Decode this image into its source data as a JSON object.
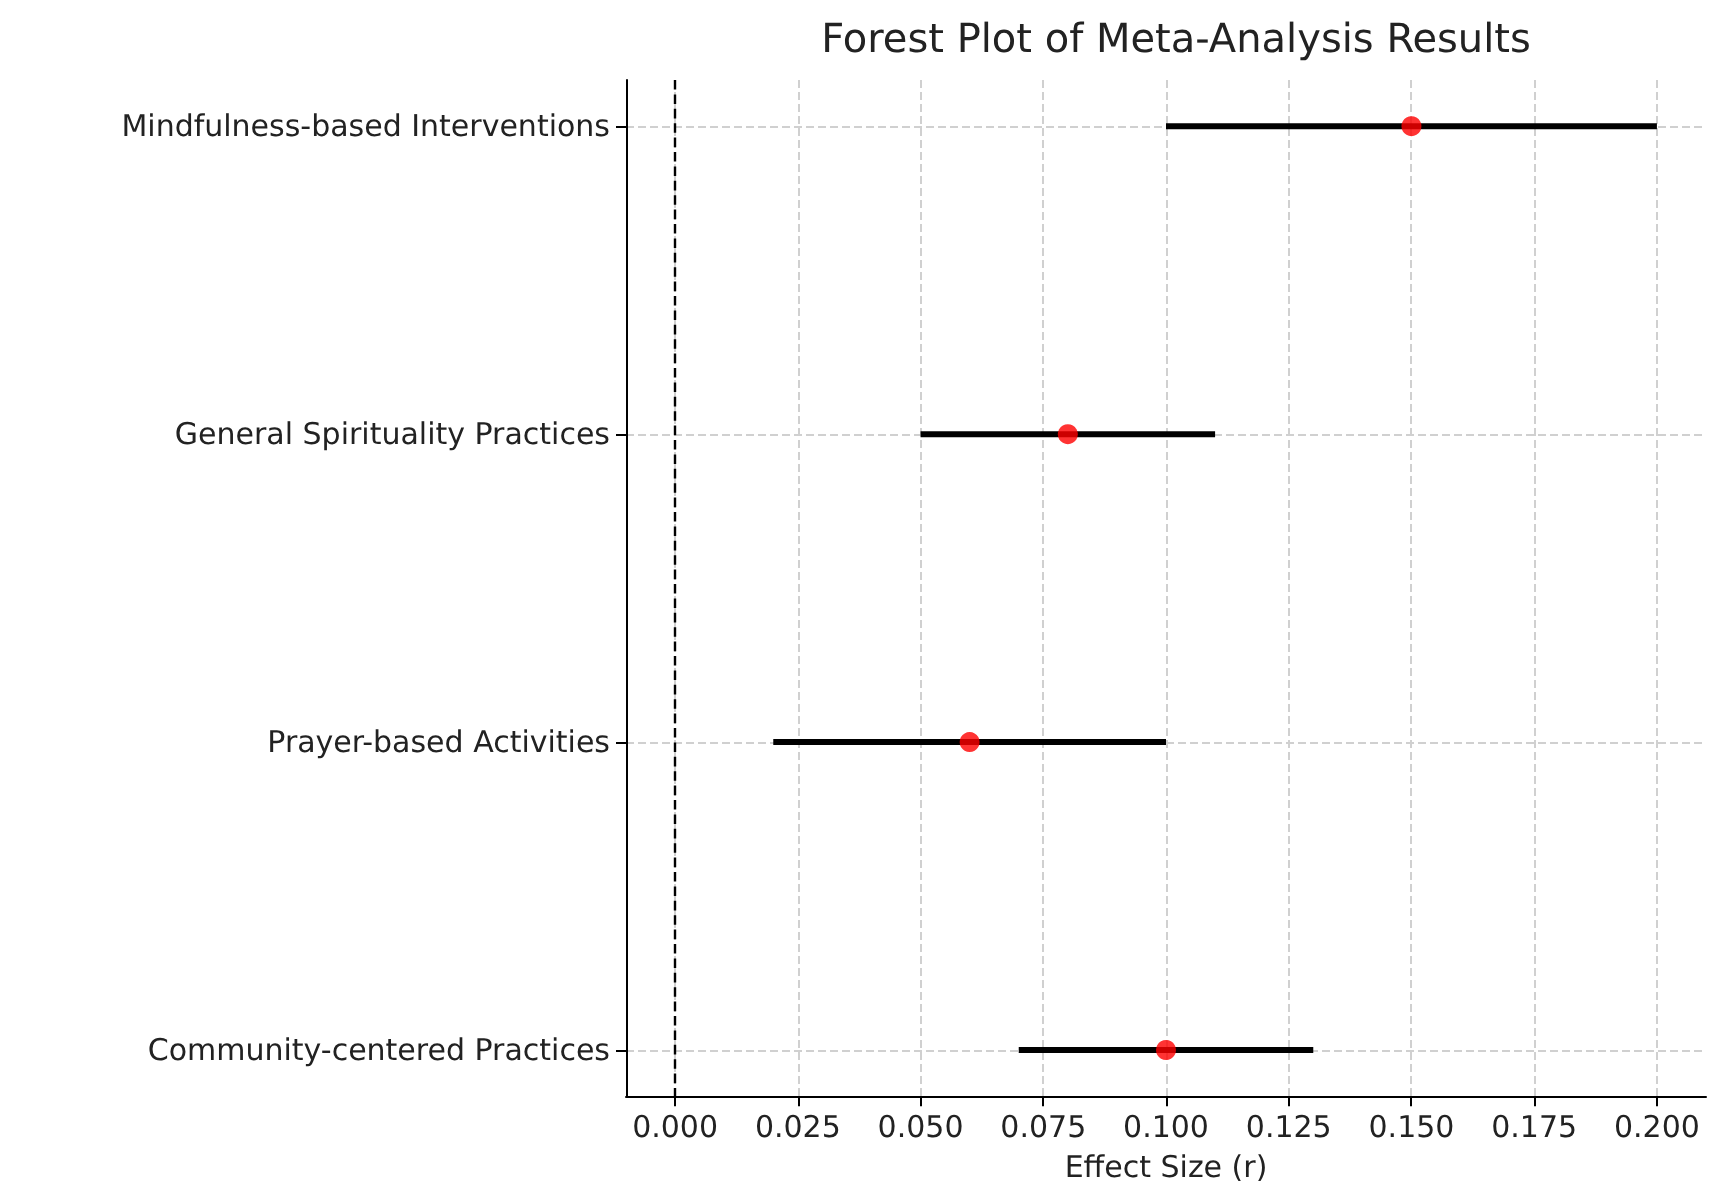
{
  "chart_data": {
    "type": "scatter",
    "title": "Forest Plot of Meta-Analysis Results",
    "xlabel": "Effect Size (r)",
    "orientation": "horizontal",
    "categories": [
      "Mindfulness-based Interventions",
      "General Spirituality Practices",
      "Prayer-based Activities",
      "Community-centered Practices"
    ],
    "series": [
      {
        "color": "#ff0000",
        "values": [
          0.15,
          0.08,
          0.06,
          0.1
        ],
        "errors": [
          [
            0.1,
            0.2
          ],
          [
            0.05,
            0.11
          ],
          [
            0.02,
            0.1
          ],
          [
            0.07,
            0.13
          ]
        ]
      }
    ],
    "xlim": [
      -0.01,
      0.21
    ],
    "xticks": [
      {
        "value": 0,
        "label": "0.000"
      },
      {
        "value": 0.025,
        "label": "0.025"
      },
      {
        "value": 0.05,
        "label": "0.050"
      },
      {
        "value": 0.075,
        "label": "0.075"
      },
      {
        "value": 0.1,
        "label": "0.100"
      },
      {
        "value": 0.125,
        "label": "0.125"
      },
      {
        "value": 0.15,
        "label": "0.150"
      },
      {
        "value": 0.175,
        "label": "0.175"
      },
      {
        "value": 0.2,
        "label": "0.200"
      }
    ],
    "ref_lines": [
      {
        "axis": "x",
        "value": 0,
        "color": "#000000",
        "line_style": "dashed"
      }
    ],
    "grid": true,
    "marker": "circle"
  }
}
